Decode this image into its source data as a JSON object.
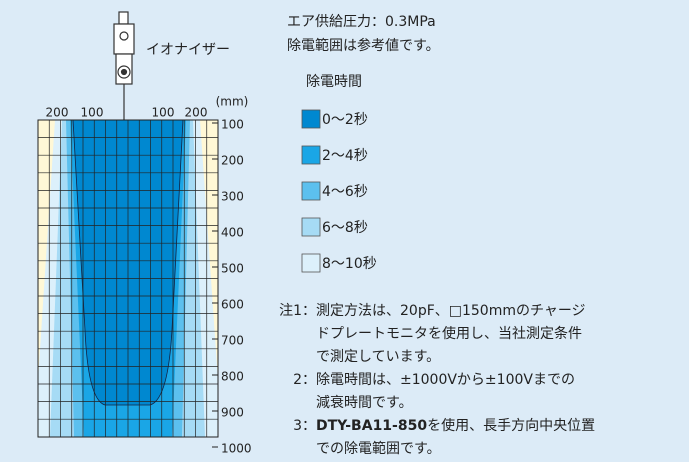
{
  "device_label": "イオナイザー",
  "header": [
    "エア供給圧力：0.3MPa",
    "除電範囲は参考値です。"
  ],
  "axis": {
    "unit": "(mm)",
    "top_labels": [
      "200",
      "100",
      "100",
      "200"
    ],
    "right_labels": [
      "100",
      "200",
      "300",
      "400",
      "500",
      "600",
      "700",
      "800",
      "900",
      "1000"
    ]
  },
  "legend": {
    "title": "除電時間",
    "items": [
      "0～2秒",
      "2～4秒",
      "4～6秒",
      "6～8秒",
      "8～10秒"
    ]
  },
  "notes": [
    {
      "prefix": "注1：",
      "lines": [
        "測定方法は、20pF、□150mmのチャージ",
        "ドプレートモニタを使用し、当社測定条件",
        "で測定しています。"
      ]
    },
    {
      "prefix": "2：",
      "lines": [
        "除電時間は、±1000Vから±100Vまでの",
        "減衰時間です。"
      ]
    },
    {
      "prefix": "3：",
      "bold": "DTY-BA11-850",
      "lines": [
        "を使用、長手方向中央位置",
        "での除電範囲です。"
      ]
    }
  ]
}
